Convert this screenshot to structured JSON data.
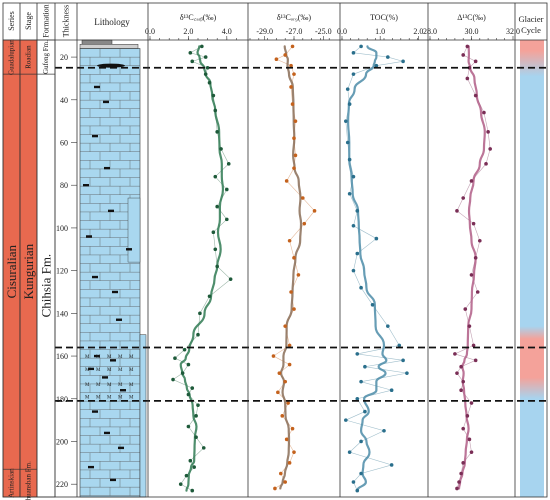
{
  "chart_data": {
    "type": "line",
    "header": {
      "series": "Series",
      "stage": "Stage",
      "formation": "Formation",
      "thickness": "Thickness",
      "lithology": "Lithology",
      "glacier": [
        "Glacier",
        "Cycle"
      ]
    },
    "units": {
      "series": [
        {
          "label": "Guadalupian",
          "from": 12,
          "to": 28
        },
        {
          "label": "Cisuralian",
          "from": 28,
          "to": 213
        },
        {
          "label": "Artinskian",
          "from": 213,
          "to": 226
        }
      ],
      "stage": [
        {
          "label": "Roadian",
          "from": 12,
          "to": 28
        },
        {
          "label": "Kungurian",
          "from": 28,
          "to": 213
        },
        {
          "label": "Chuanshan Fm.",
          "from": 213,
          "to": 226
        }
      ],
      "formation": [
        {
          "label": "Gufeng Fm.",
          "from": 12,
          "to": 28
        },
        {
          "label": "Chihsia Fm.",
          "from": 28,
          "to": 226
        }
      ]
    },
    "depth_axis": {
      "range": [
        12,
        226
      ],
      "ticks": [
        20,
        40,
        60,
        80,
        100,
        120,
        140,
        160,
        180,
        200,
        220
      ]
    },
    "boundaries": [
      25,
      156,
      181
    ],
    "colors": {
      "series_fill": "#e8694f",
      "stage_fill": "#e8694f",
      "formation_fill": "#ffffff",
      "limestone": "#a9d7ef",
      "chert": "#111111",
      "warm": "#f4a29a",
      "cold": "#a7d4ef"
    },
    "glacier_cycle": [
      {
        "depth": 12,
        "state": "warm"
      },
      {
        "depth": 17,
        "state": "warm"
      },
      {
        "depth": 29,
        "state": "cold"
      },
      {
        "depth": 146,
        "state": "cold"
      },
      {
        "depth": 152,
        "state": "warm"
      },
      {
        "depth": 170,
        "state": "warm"
      },
      {
        "depth": 180,
        "state": "cold"
      },
      {
        "depth": 226,
        "state": "cold"
      }
    ],
    "panels": [
      {
        "key": "d13c",
        "label": "δ¹³C꜀ₐᵣᵦ(‰)",
        "range": [
          0,
          5
        ],
        "ticks": [
          {
            "v": 0,
            "t": "0.0"
          },
          {
            "v": 2,
            "t": "2.0"
          },
          {
            "v": 4,
            "t": "4.0"
          }
        ],
        "color": "#2f7a52",
        "point_color": "#1e5a3a",
        "data": [
          [
            15,
            2.7
          ],
          [
            18,
            2.1
          ],
          [
            20,
            2.9
          ],
          [
            22,
            2.2
          ],
          [
            25,
            3.0
          ],
          [
            28,
            2.9
          ],
          [
            32,
            3.1
          ],
          [
            38,
            3.3
          ],
          [
            45,
            3.4
          ],
          [
            55,
            3.5
          ],
          [
            63,
            3.7
          ],
          [
            70,
            4.1
          ],
          [
            76,
            3.4
          ],
          [
            82,
            4.0
          ],
          [
            90,
            3.5
          ],
          [
            96,
            4.0
          ],
          [
            102,
            3.3
          ],
          [
            110,
            3.4
          ],
          [
            118,
            3.5
          ],
          [
            124,
            4.2
          ],
          [
            132,
            3.1
          ],
          [
            140,
            2.6
          ],
          [
            150,
            2.5
          ],
          [
            157,
            1.8
          ],
          [
            161,
            1.3
          ],
          [
            164,
            2.0
          ],
          [
            168,
            1.7
          ],
          [
            171,
            1.2
          ],
          [
            175,
            2.2
          ],
          [
            178,
            2.0
          ],
          [
            183,
            2.5
          ],
          [
            188,
            2.4
          ],
          [
            193,
            2.0
          ],
          [
            198,
            2.4
          ],
          [
            203,
            2.8
          ],
          [
            209,
            2.1
          ],
          [
            212,
            2.3
          ],
          [
            216,
            1.9
          ],
          [
            220,
            1.6
          ],
          [
            223,
            2.2
          ]
        ]
      },
      {
        "key": "d13corg",
        "label": "δ¹³Cₒᵣ₉(‰)",
        "range": [
          -30,
          -24
        ],
        "ticks": [
          {
            "v": -29,
            "t": "-29.0"
          },
          {
            "v": -27,
            "t": "-27.0"
          },
          {
            "v": -25,
            "t": "-25.0"
          }
        ],
        "color": "#8a6d57",
        "point_color": "#c4621d",
        "data": [
          [
            15,
            -27.1
          ],
          [
            19,
            -27.6
          ],
          [
            21,
            -28.2
          ],
          [
            24,
            -27.2
          ],
          [
            28,
            -27.0
          ],
          [
            34,
            -27.2
          ],
          [
            42,
            -27.1
          ],
          [
            50,
            -26.9
          ],
          [
            58,
            -27.0
          ],
          [
            66,
            -26.9
          ],
          [
            72,
            -27.0
          ],
          [
            78,
            -27.5
          ],
          [
            86,
            -26.4
          ],
          [
            92,
            -25.6
          ],
          [
            98,
            -26.3
          ],
          [
            106,
            -27.3
          ],
          [
            114,
            -27.0
          ],
          [
            122,
            -26.7
          ],
          [
            130,
            -27.2
          ],
          [
            138,
            -27.0
          ],
          [
            146,
            -27.6
          ],
          [
            155,
            -27.3
          ],
          [
            160,
            -28.4
          ],
          [
            164,
            -27.3
          ],
          [
            168,
            -28.0
          ],
          [
            172,
            -27.6
          ],
          [
            177,
            -28.1
          ],
          [
            182,
            -27.4
          ],
          [
            188,
            -27.8
          ],
          [
            194,
            -27.1
          ],
          [
            199,
            -27.5
          ],
          [
            205,
            -27.0
          ],
          [
            210,
            -27.3
          ],
          [
            215,
            -27.9
          ],
          [
            219,
            -27.6
          ],
          [
            222,
            -28.3
          ]
        ]
      },
      {
        "key": "toc",
        "label": "TOC(%)",
        "range": [
          0,
          2.2
        ],
        "ticks": [
          {
            "v": 0,
            "t": "0.0"
          },
          {
            "v": 1,
            "t": "1.0"
          },
          {
            "v": 2,
            "t": "2.0"
          }
        ],
        "color": "#4c8ca8",
        "point_color": "#2a6f8c",
        "data": [
          [
            15,
            0.5
          ],
          [
            18,
            0.3
          ],
          [
            20,
            1.2
          ],
          [
            22,
            1.6
          ],
          [
            24,
            0.9
          ],
          [
            28,
            0.3
          ],
          [
            35,
            0.15
          ],
          [
            42,
            0.2
          ],
          [
            50,
            0.1
          ],
          [
            60,
            0.15
          ],
          [
            68,
            0.2
          ],
          [
            76,
            0.3
          ],
          [
            84,
            0.2
          ],
          [
            92,
            0.4
          ],
          [
            99,
            0.3
          ],
          [
            105,
            0.9
          ],
          [
            112,
            0.4
          ],
          [
            120,
            0.3
          ],
          [
            128,
            0.5
          ],
          [
            136,
            0.8
          ],
          [
            146,
            1.2
          ],
          [
            155,
            1.5
          ],
          [
            159,
            0.4
          ],
          [
            162,
            1.6
          ],
          [
            165,
            0.6
          ],
          [
            168,
            1.7
          ],
          [
            172,
            0.5
          ],
          [
            176,
            1.3
          ],
          [
            180,
            0.4
          ],
          [
            186,
            0.6
          ],
          [
            190,
            0.1
          ],
          [
            195,
            1.1
          ],
          [
            200,
            0.5
          ],
          [
            205,
            0.2
          ],
          [
            211,
            1.3
          ],
          [
            215,
            0.5
          ],
          [
            219,
            0.3
          ],
          [
            223,
            0.4
          ]
        ]
      },
      {
        "key": "d13c_diff",
        "label": "Δ¹³C(‰)",
        "range": [
          28,
          32
        ],
        "ticks": [
          {
            "v": 28,
            "t": "28.0"
          },
          {
            "v": 30,
            "t": "30.0"
          },
          {
            "v": 32,
            "t": "32.0"
          }
        ],
        "color": "#b05d86",
        "point_color": "#7a2e56",
        "data": [
          [
            15,
            29.8
          ],
          [
            19,
            29.6
          ],
          [
            22,
            30.2
          ],
          [
            25,
            29.9
          ],
          [
            30,
            29.8
          ],
          [
            38,
            30.2
          ],
          [
            46,
            30.6
          ],
          [
            55,
            30.8
          ],
          [
            63,
            30.9
          ],
          [
            70,
            30.7
          ],
          [
            78,
            30.0
          ],
          [
            86,
            29.6
          ],
          [
            92,
            29.3
          ],
          [
            98,
            30.1
          ],
          [
            106,
            30.4
          ],
          [
            114,
            30.2
          ],
          [
            122,
            30.0
          ],
          [
            130,
            30.3
          ],
          [
            138,
            29.7
          ],
          [
            146,
            29.9
          ],
          [
            155,
            30.1
          ],
          [
            159,
            29.2
          ],
          [
            162,
            30.2
          ],
          [
            165,
            29.5
          ],
          [
            168,
            29.3
          ],
          [
            172,
            29.6
          ],
          [
            176,
            29.5
          ],
          [
            182,
            30.0
          ],
          [
            188,
            29.8
          ],
          [
            194,
            29.6
          ],
          [
            199,
            29.9
          ],
          [
            205,
            30.0
          ],
          [
            210,
            29.6
          ],
          [
            215,
            29.5
          ],
          [
            219,
            29.4
          ],
          [
            222,
            29.3
          ]
        ]
      }
    ]
  }
}
